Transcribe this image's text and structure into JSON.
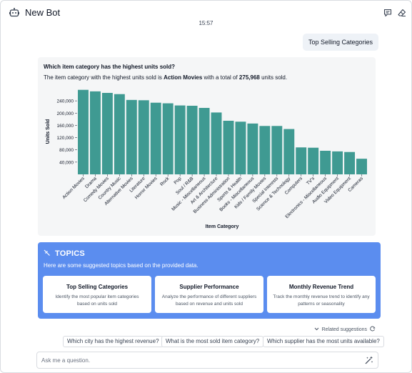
{
  "header": {
    "title": "New Bot",
    "time": "15:57"
  },
  "icons": {
    "bot": "robot-icon",
    "comment": "comment-icon",
    "erase": "eraser-icon",
    "topics": "wand-icon",
    "related": "refresh-icon",
    "magic": "sparkle-wand-icon"
  },
  "conversation": {
    "user_message": "Top Selling Categories",
    "question": "Which item category has the highest units sold?",
    "answer_pre": "The item category with the highest units sold is ",
    "answer_category": "Action Movies",
    "answer_mid": " with a total of ",
    "answer_value": "275,968",
    "answer_post": " units sold."
  },
  "chart_data": {
    "type": "bar",
    "title": "",
    "xlabel": "Item Category",
    "ylabel": "Units Sold",
    "ylim": [
      0,
      280000
    ],
    "yticks": [
      40000,
      80000,
      120000,
      160000,
      200000,
      240000
    ],
    "ytick_labels": [
      "40,000",
      "80,000",
      "120,000",
      "160,000",
      "200,000",
      "240,000"
    ],
    "grid": false,
    "color": "#3f9a92",
    "categories": [
      "Action Movies",
      "Drama",
      "Comedy Movies",
      "Country Music",
      "Alternative Movies",
      "Literature",
      "Horror Movies",
      "Rock",
      "Pop",
      "Soul / R&B",
      "Music - Miscellaneous",
      "Art & Architecture",
      "Business Administration",
      "Sports & Health",
      "Books - Miscellaneous",
      "Kids / Family Movies",
      "Special Interests",
      "Science & Technology",
      "Computers",
      "TV's",
      "Electronics - Miscellaneous",
      "Audio Equipment",
      "Video Equipment",
      "Cameras"
    ],
    "values": [
      275968,
      271000,
      266000,
      262000,
      243000,
      242000,
      234000,
      232000,
      225000,
      224000,
      217000,
      202000,
      175000,
      172000,
      166000,
      158000,
      158000,
      148000,
      88000,
      87000,
      77000,
      75000,
      73000,
      51000
    ]
  },
  "topics": {
    "title": "TOPICS",
    "subtitle": "Here are some suggested topics based on the provided data.",
    "cards": [
      {
        "title": "Top Selling Categories",
        "desc": "Identify the most popular item categories based on units sold"
      },
      {
        "title": "Supplier Performance",
        "desc": "Analyze the performance of different suppliers based on revenue and units sold"
      },
      {
        "title": "Monthly Revenue Trend",
        "desc": "Track the monthly revenue trend to identify any patterns or seasonality"
      }
    ]
  },
  "related": {
    "label": "Related suggestions",
    "items": [
      "Which city has the highest revenue?",
      "What is the most sold item category?",
      "Which supplier has the most units available?"
    ]
  },
  "input": {
    "placeholder": "Ask me a question."
  }
}
